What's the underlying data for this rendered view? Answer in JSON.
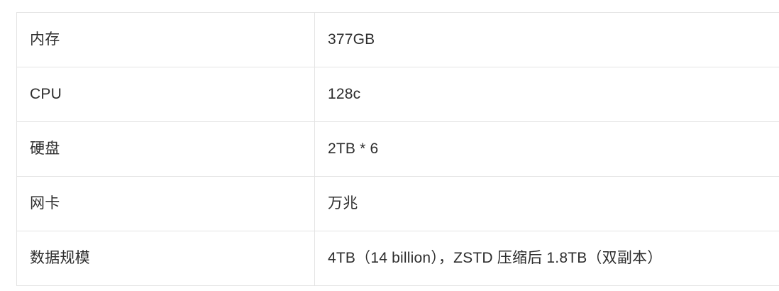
{
  "colors": {
    "page_background": "#ffffff",
    "cell_background": "#ffffff",
    "border": "#e3e3e3",
    "text": "#2d2d2d"
  },
  "table": {
    "rows": [
      {
        "label": "内存",
        "value": "377GB"
      },
      {
        "label": "CPU",
        "value": "128c"
      },
      {
        "label": "硬盘",
        "value": "2TB * 6"
      },
      {
        "label": "网卡",
        "value": "万兆"
      },
      {
        "label": "数据规模",
        "value": "4TB（14 billion），ZSTD 压缩后 1.8TB（双副本）"
      }
    ]
  }
}
